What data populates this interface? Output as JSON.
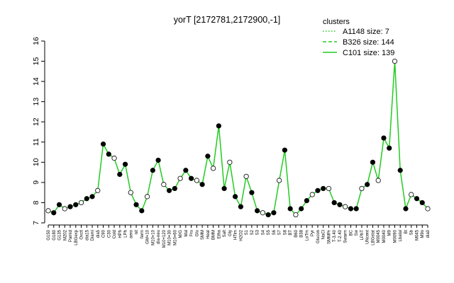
{
  "chart_data": {
    "type": "line",
    "title": "yorT [2172781,2172900,-1]",
    "xlabel": "",
    "ylabel": "",
    "ylim": [
      7,
      16
    ],
    "yticks": [
      7,
      8,
      9,
      10,
      11,
      12,
      13,
      14,
      15,
      16
    ],
    "legend": {
      "position": "top-right",
      "title": "clusters",
      "entries": [
        {
          "label": "A1148 size: 7",
          "style": "dotted"
        },
        {
          "label": "B326 size: 144",
          "style": "dashed"
        },
        {
          "label": "C101 size: 139",
          "style": "solid"
        }
      ]
    },
    "line_color": "#22cc22",
    "x_tick_labels": [
      "G150",
      "G180",
      "G135",
      "M202",
      "Pamid",
      "LBGexp",
      "Oxctl",
      "dia15",
      "Diami",
      "dia5",
      "C90",
      "C30",
      "Cold",
      "HPh",
      "LPh",
      "aero",
      "nit",
      "ferm",
      "GM+10",
      "M10+10",
      "dia-neu",
      "M10+120",
      "M10+30",
      "M10+60",
      "M/G",
      "Mal",
      "Fru",
      "Glu",
      "SMM",
      "Heat",
      "BMM",
      "Etha",
      "Salt",
      "Gly",
      "HTim",
      "H2O2",
      "S1",
      "S2",
      "S3",
      "S4",
      "S5",
      "S6",
      "S7",
      "S8",
      "BT",
      "B60",
      "B38",
      "LoTm",
      "Pyr",
      "Glucon",
      "NaCl",
      "SMMPr",
      "T-3.40",
      "T-2.40",
      "Swarm",
      "BC",
      "Sw",
      "LPhT",
      "UNcent",
      "LBGstat",
      "M0045",
      "M0040",
      "M9",
      "M0090",
      "Lbatal",
      "BI",
      "Sb",
      "M045",
      "M9o",
      "dia0"
    ],
    "series": [
      {
        "name": "A1148",
        "values": [
          7.6,
          7.5,
          7.9,
          7.7,
          7.8,
          7.9,
          8.0,
          8.2,
          8.3,
          8.6,
          10.9,
          10.4,
          10.2,
          9.4,
          9.9,
          8.5,
          7.9,
          7.6,
          8.3,
          9.6,
          10.1,
          8.9,
          8.6,
          8.7,
          9.2,
          9.6,
          9.2,
          9.1,
          8.9,
          10.3,
          9.7,
          11.8,
          8.7,
          10.0,
          8.3,
          7.8,
          9.3,
          8.5,
          7.6,
          7.5,
          7.4,
          7.5,
          9.1,
          10.6,
          7.7,
          7.4,
          7.7,
          8.1,
          8.4,
          8.6,
          8.7,
          8.7,
          8.0,
          7.9,
          7.8,
          7.7,
          7.7,
          8.7,
          8.9,
          10.0,
          9.1,
          11.2,
          10.7,
          15.0,
          9.6,
          7.7,
          8.4,
          8.2,
          8.0,
          7.7
        ]
      }
    ],
    "series_style": {
      "A1148": "line with open/filled circle markers"
    }
  }
}
